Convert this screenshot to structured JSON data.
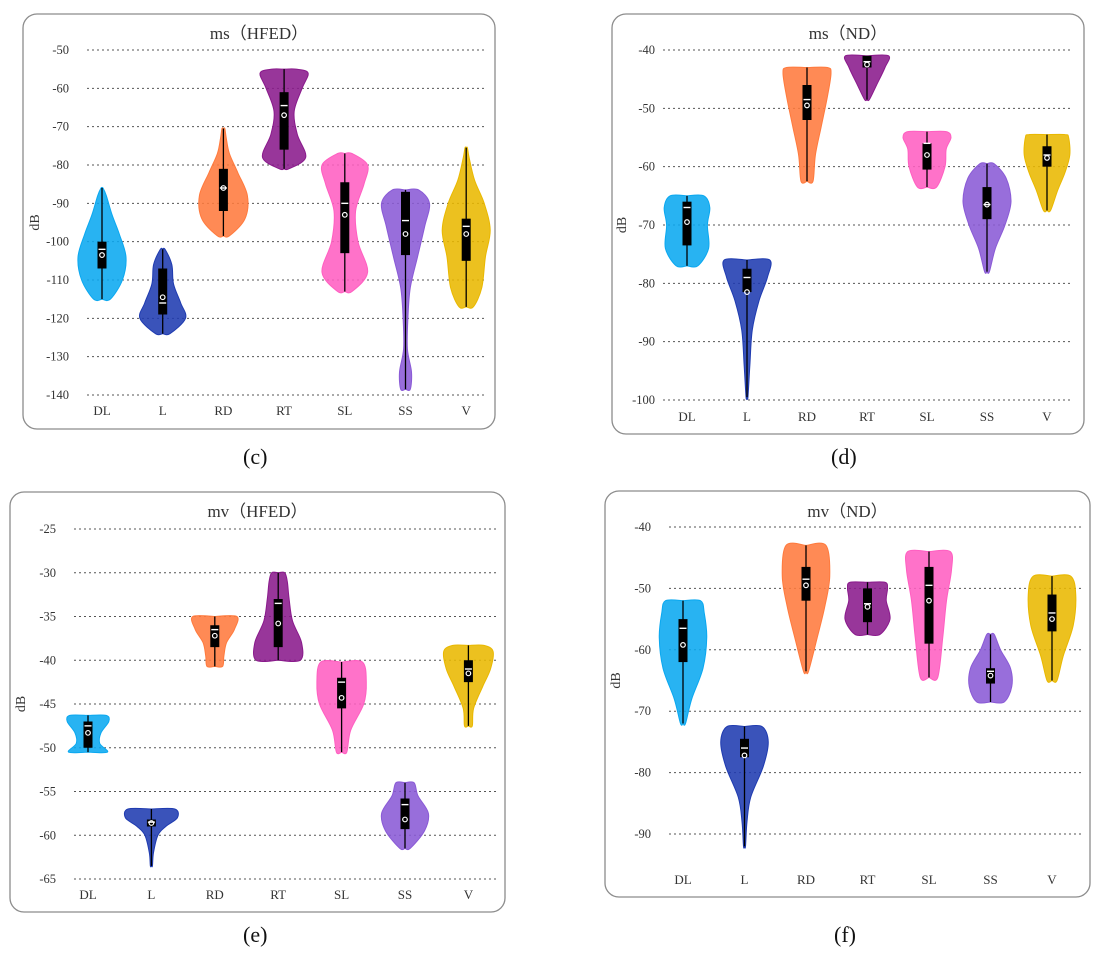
{
  "captions": [
    "(c)",
    "(d)",
    "(e)",
    "(f)"
  ],
  "colors": {
    "DL": "#0aa8f0",
    "L": "#1f3bb0",
    "RD": "#ff7a3d",
    "RT": "#8a1a8c",
    "SL": "#ff5fc1",
    "SS": "#8a5ad6",
    "V": "#e9b800",
    "frame": "#8c8c8c",
    "grid": "#555555",
    "box": "#000000",
    "median": "#ffffff"
  },
  "chart_data": [
    {
      "type": "violin",
      "title": "ms（HFED）",
      "ylabel": "dB",
      "ylim": [
        -140,
        -50
      ],
      "yticks": [
        -50,
        -60,
        -70,
        -80,
        -90,
        -100,
        -110,
        -120,
        -130,
        -140
      ],
      "grid": true,
      "categories": [
        "DL",
        "L",
        "RD",
        "RT",
        "SL",
        "SS",
        "V"
      ],
      "violins": [
        {
          "category": "DL",
          "min": -115,
          "q1": -107,
          "median": -102,
          "mean": -103.5,
          "q3": -100,
          "max": -86,
          "profile": [
            [
              -115,
              0.35
            ],
            [
              -110,
              0.85
            ],
            [
              -104,
              1.0
            ],
            [
              -98,
              0.72
            ],
            [
              -93,
              0.42
            ],
            [
              -88,
              0.18
            ],
            [
              -86,
              0.04
            ]
          ]
        },
        {
          "category": "L",
          "min": -124,
          "q1": -119,
          "median": -116,
          "mean": -114.5,
          "q3": -107,
          "max": -102,
          "profile": [
            [
              -124,
              0.3
            ],
            [
              -120,
              0.95
            ],
            [
              -116,
              0.75
            ],
            [
              -111,
              0.45
            ],
            [
              -106,
              0.38
            ],
            [
              -102,
              0.1
            ]
          ]
        },
        {
          "category": "RD",
          "min": -98.5,
          "q1": -92,
          "median": -86,
          "mean": -86,
          "q3": -81,
          "max": -70.5,
          "profile": [
            [
              -98.5,
              0.25
            ],
            [
              -94,
              0.9
            ],
            [
              -88,
              1.0
            ],
            [
              -82,
              0.6
            ],
            [
              -77,
              0.25
            ],
            [
              -73,
              0.12
            ],
            [
              -70.5,
              0.06
            ]
          ]
        },
        {
          "category": "RT",
          "min": -81,
          "q1": -76,
          "median": -64.5,
          "mean": -67,
          "q3": -61,
          "max": -55,
          "profile": [
            [
              -81,
              0.2
            ],
            [
              -78,
              0.9
            ],
            [
              -72,
              0.55
            ],
            [
              -66,
              0.42
            ],
            [
              -60,
              0.75
            ],
            [
              -56,
              1.0
            ],
            [
              -55,
              0.5
            ]
          ]
        },
        {
          "category": "SL",
          "min": -113,
          "q1": -103,
          "median": -90,
          "mean": -93,
          "q3": -84.5,
          "max": -77,
          "profile": [
            [
              -113,
              0.3
            ],
            [
              -108,
              0.95
            ],
            [
              -100,
              0.55
            ],
            [
              -92,
              0.45
            ],
            [
              -85,
              0.8
            ],
            [
              -80,
              0.95
            ],
            [
              -77,
              0.3
            ]
          ]
        },
        {
          "category": "SS",
          "min": -138.5,
          "q1": -103.5,
          "median": -94.5,
          "mean": -98,
          "q3": -87,
          "max": -86.5,
          "profile": [
            [
              -138.5,
              0.2
            ],
            [
              -134,
              0.25
            ],
            [
              -128,
              0.08
            ],
            [
              -120,
              0.1
            ],
            [
              -112,
              0.2
            ],
            [
              -104,
              0.5
            ],
            [
              -96,
              0.8
            ],
            [
              -90,
              1.0
            ],
            [
              -86.5,
              0.55
            ]
          ]
        },
        {
          "category": "V",
          "min": -117,
          "q1": -105,
          "median": -96,
          "mean": -98,
          "q3": -94,
          "max": -75.5,
          "profile": [
            [
              -117,
              0.3
            ],
            [
              -112,
              0.65
            ],
            [
              -104,
              0.8
            ],
            [
              -97,
              1.0
            ],
            [
              -90,
              0.75
            ],
            [
              -84,
              0.35
            ],
            [
              -78,
              0.12
            ],
            [
              -75.5,
              0.05
            ]
          ]
        }
      ]
    },
    {
      "type": "violin",
      "title": "ms（ND）",
      "ylabel": "dB",
      "ylim": [
        -100,
        -40
      ],
      "yticks": [
        -40,
        -50,
        -60,
        -70,
        -80,
        -90,
        -100
      ],
      "grid": true,
      "categories": [
        "DL",
        "L",
        "RD",
        "RT",
        "SL",
        "SS",
        "V"
      ],
      "violins": [
        {
          "category": "DL",
          "min": -77,
          "q1": -73.5,
          "median": -67,
          "mean": -69.5,
          "q3": -66,
          "max": -65,
          "profile": [
            [
              -77,
              0.45
            ],
            [
              -74,
              0.9
            ],
            [
              -70,
              0.85
            ],
            [
              -67,
              0.95
            ],
            [
              -65,
              0.7
            ]
          ]
        },
        {
          "category": "L",
          "min": -99.5,
          "q1": -81.5,
          "median": -79,
          "mean": -81.5,
          "q3": -77.5,
          "max": -76,
          "profile": [
            [
              -99.5,
              0.04
            ],
            [
              -94,
              0.12
            ],
            [
              -88,
              0.22
            ],
            [
              -83,
              0.5
            ],
            [
              -79,
              0.85
            ],
            [
              -76,
              0.95
            ]
          ]
        },
        {
          "category": "RD",
          "min": -62.5,
          "q1": -52,
          "median": -48.5,
          "mean": -49.5,
          "q3": -46,
          "max": -43,
          "profile": [
            [
              -62.5,
              0.25
            ],
            [
              -58,
              0.35
            ],
            [
              -53,
              0.6
            ],
            [
              -48,
              0.85
            ],
            [
              -44,
              1.0
            ],
            [
              -43,
              0.85
            ]
          ]
        },
        {
          "category": "RT",
          "min": -48.5,
          "q1": -43,
          "median": -42,
          "mean": -42.5,
          "q3": -41,
          "max": -41,
          "profile": [
            [
              -48.5,
              0.1
            ],
            [
              -46,
              0.4
            ],
            [
              -43,
              0.75
            ],
            [
              -41,
              0.9
            ]
          ]
        },
        {
          "category": "SL",
          "min": -63.5,
          "q1": -60.5,
          "median": -56,
          "mean": -58,
          "q3": -56,
          "max": -54,
          "profile": [
            [
              -63.5,
              0.4
            ],
            [
              -60,
              0.75
            ],
            [
              -57,
              0.8
            ],
            [
              -55,
              1.0
            ],
            [
              -54,
              0.8
            ]
          ]
        },
        {
          "category": "SS",
          "min": -78,
          "q1": -69,
          "median": -66.5,
          "mean": -66.5,
          "q3": -63.5,
          "max": -59.5,
          "profile": [
            [
              -78,
              0.1
            ],
            [
              -74,
              0.35
            ],
            [
              -70,
              0.75
            ],
            [
              -66,
              1.0
            ],
            [
              -62,
              0.8
            ],
            [
              -59.5,
              0.3
            ]
          ]
        },
        {
          "category": "V",
          "min": -67.5,
          "q1": -60,
          "median": -58,
          "mean": -58.5,
          "q3": -56.5,
          "max": -54.5,
          "profile": [
            [
              -67.5,
              0.15
            ],
            [
              -64,
              0.45
            ],
            [
              -61,
              0.75
            ],
            [
              -58,
              0.95
            ],
            [
              -55,
              0.9
            ],
            [
              -54.5,
              0.75
            ]
          ]
        }
      ]
    },
    {
      "type": "violin",
      "title": "mv（HFED）",
      "ylabel": "dB",
      "ylim": [
        -65,
        -25
      ],
      "yticks": [
        -25,
        -30,
        -35,
        -40,
        -45,
        -50,
        -55,
        -60,
        -65
      ],
      "grid": true,
      "categories": [
        "DL",
        "L",
        "RD",
        "RT",
        "SL",
        "SS",
        "V"
      ],
      "violins": [
        {
          "category": "DL",
          "min": -50.5,
          "q1": -50,
          "median": -47.5,
          "mean": -48.3,
          "q3": -47,
          "max": -46.3,
          "profile": [
            [
              -50.5,
              0.75
            ],
            [
              -49.5,
              0.45
            ],
            [
              -48.3,
              0.5
            ],
            [
              -47,
              0.8
            ],
            [
              -46.3,
              0.7
            ]
          ]
        },
        {
          "category": "L",
          "min": -63.5,
          "q1": -59,
          "median": -58.5,
          "mean": -58.6,
          "q3": -58.2,
          "max": -57,
          "profile": [
            [
              -63.5,
              0.04
            ],
            [
              -62,
              0.08
            ],
            [
              -60,
              0.25
            ],
            [
              -59,
              0.55
            ],
            [
              -58,
              1.0
            ],
            [
              -57,
              0.9
            ]
          ]
        },
        {
          "category": "RD",
          "min": -40.7,
          "q1": -38.5,
          "median": -36.5,
          "mean": -37.2,
          "q3": -36,
          "max": -35,
          "profile": [
            [
              -40.7,
              0.3
            ],
            [
              -39.5,
              0.35
            ],
            [
              -38,
              0.45
            ],
            [
              -36.5,
              0.75
            ],
            [
              -35,
              0.85
            ]
          ]
        },
        {
          "category": "RT",
          "min": -40,
          "q1": -38.5,
          "median": -33.5,
          "mean": -35.8,
          "q3": -33,
          "max": -30,
          "profile": [
            [
              -40,
              0.85
            ],
            [
              -38,
              0.9
            ],
            [
              -35.5,
              0.55
            ],
            [
              -33,
              0.42
            ],
            [
              -31,
              0.35
            ],
            [
              -30,
              0.25
            ]
          ]
        },
        {
          "category": "SL",
          "min": -50.5,
          "q1": -45.5,
          "median": -42.5,
          "mean": -44.3,
          "q3": -42,
          "max": -40.2,
          "profile": [
            [
              -50.5,
              0.2
            ],
            [
              -48,
              0.35
            ],
            [
              -45,
              0.85
            ],
            [
              -42.5,
              0.95
            ],
            [
              -40.2,
              0.8
            ]
          ]
        },
        {
          "category": "SS",
          "min": -61.5,
          "q1": -59.3,
          "median": -56.5,
          "mean": -58.2,
          "q3": -55.8,
          "max": -54,
          "profile": [
            [
              -61.5,
              0.2
            ],
            [
              -59.5,
              0.75
            ],
            [
              -57.5,
              0.9
            ],
            [
              -55.5,
              0.5
            ],
            [
              -54,
              0.35
            ]
          ]
        },
        {
          "category": "V",
          "min": -47.5,
          "q1": -42.5,
          "median": -41,
          "mean": -41.5,
          "q3": -40,
          "max": -38.3,
          "profile": [
            [
              -47.5,
              0.15
            ],
            [
              -45.5,
              0.2
            ],
            [
              -43,
              0.55
            ],
            [
              -41,
              0.85
            ],
            [
              -39,
              0.95
            ],
            [
              -38.3,
              0.6
            ]
          ]
        }
      ]
    },
    {
      "type": "violin",
      "title": "mv（ND）",
      "ylabel": "dB",
      "ylim": [
        -90,
        -40
      ],
      "yticks": [
        -40,
        -50,
        -60,
        -70,
        -80,
        -90
      ],
      "grid": true,
      "categories": [
        "DL",
        "L",
        "RD",
        "RT",
        "SL",
        "SS",
        "V"
      ],
      "violins": [
        {
          "category": "DL",
          "min": -72,
          "q1": -62,
          "median": -56.5,
          "mean": -59.2,
          "q3": -55,
          "max": -52,
          "profile": [
            [
              -72,
              0.1
            ],
            [
              -68,
              0.35
            ],
            [
              -63,
              0.8
            ],
            [
              -58,
              0.95
            ],
            [
              -54,
              0.85
            ],
            [
              -52,
              0.7
            ]
          ]
        },
        {
          "category": "L",
          "min": -92,
          "q1": -77.5,
          "median": -76,
          "mean": -77.2,
          "q3": -74.5,
          "max": -72.5,
          "profile": [
            [
              -92,
              0.04
            ],
            [
              -88,
              0.1
            ],
            [
              -84,
              0.25
            ],
            [
              -79,
              0.75
            ],
            [
              -75,
              0.95
            ],
            [
              -72.5,
              0.7
            ]
          ]
        },
        {
          "category": "RD",
          "min": -63.5,
          "q1": -52,
          "median": -48.5,
          "mean": -49.5,
          "q3": -46.5,
          "max": -43,
          "profile": [
            [
              -63.5,
              0.1
            ],
            [
              -58,
              0.45
            ],
            [
              -53,
              0.75
            ],
            [
              -48,
              0.95
            ],
            [
              -43,
              0.8
            ]
          ]
        },
        {
          "category": "RT",
          "min": -57.5,
          "q1": -55.5,
          "median": -52.5,
          "mean": -53,
          "q3": -50,
          "max": -49,
          "profile": [
            [
              -57.5,
              0.5
            ],
            [
              -55,
              0.9
            ],
            [
              -52,
              0.75
            ],
            [
              -50,
              0.8
            ],
            [
              -49,
              0.7
            ]
          ]
        },
        {
          "category": "SL",
          "min": -64.5,
          "q1": -59,
          "median": -49.5,
          "mean": -52,
          "q3": -46.5,
          "max": -44,
          "profile": [
            [
              -64.5,
              0.35
            ],
            [
              -58,
              0.55
            ],
            [
              -52,
              0.7
            ],
            [
              -47,
              0.9
            ],
            [
              -44,
              0.85
            ]
          ]
        },
        {
          "category": "SS",
          "min": -68.5,
          "q1": -65.5,
          "median": -63.5,
          "mean": -64.2,
          "q3": -63,
          "max": -57.5,
          "profile": [
            [
              -68.5,
              0.55
            ],
            [
              -66,
              0.85
            ],
            [
              -63,
              0.8
            ],
            [
              -60,
              0.4
            ],
            [
              -57.5,
              0.15
            ]
          ]
        },
        {
          "category": "V",
          "min": -65,
          "q1": -57,
          "median": -54,
          "mean": -55,
          "q3": -51,
          "max": -48,
          "profile": [
            [
              -65,
              0.2
            ],
            [
              -61,
              0.45
            ],
            [
              -56,
              0.85
            ],
            [
              -51,
              0.95
            ],
            [
              -48,
              0.75
            ]
          ]
        }
      ]
    }
  ]
}
